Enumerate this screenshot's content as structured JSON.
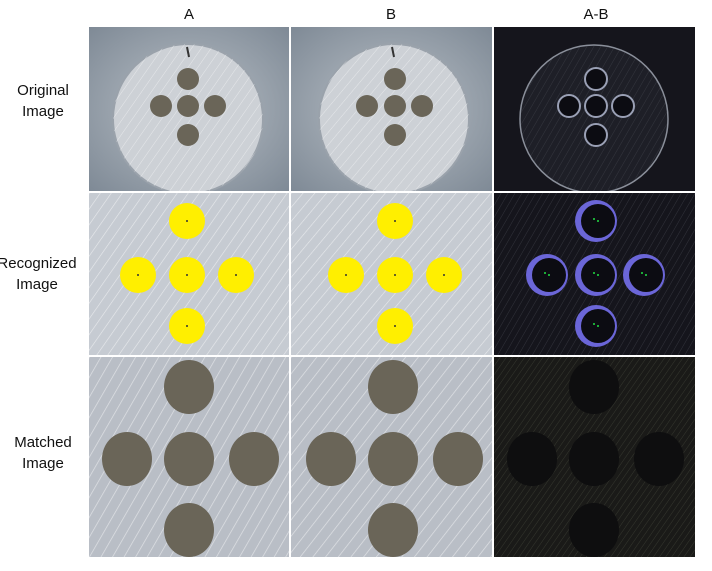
{
  "columns": [
    "A",
    "B",
    "A-B"
  ],
  "rows": [
    {
      "line1": "Original",
      "line2": "Image"
    },
    {
      "line1": "Recognized",
      "line2": "Image"
    },
    {
      "line1": "Matched",
      "line2": "Image"
    }
  ],
  "colors": {
    "metal": "#cfd3da",
    "hole": "#6a6558",
    "detected": "#ffef00",
    "diff_background": "#15151c",
    "diff_ring": "#6b66d8",
    "center_marker": "#22dd44"
  }
}
